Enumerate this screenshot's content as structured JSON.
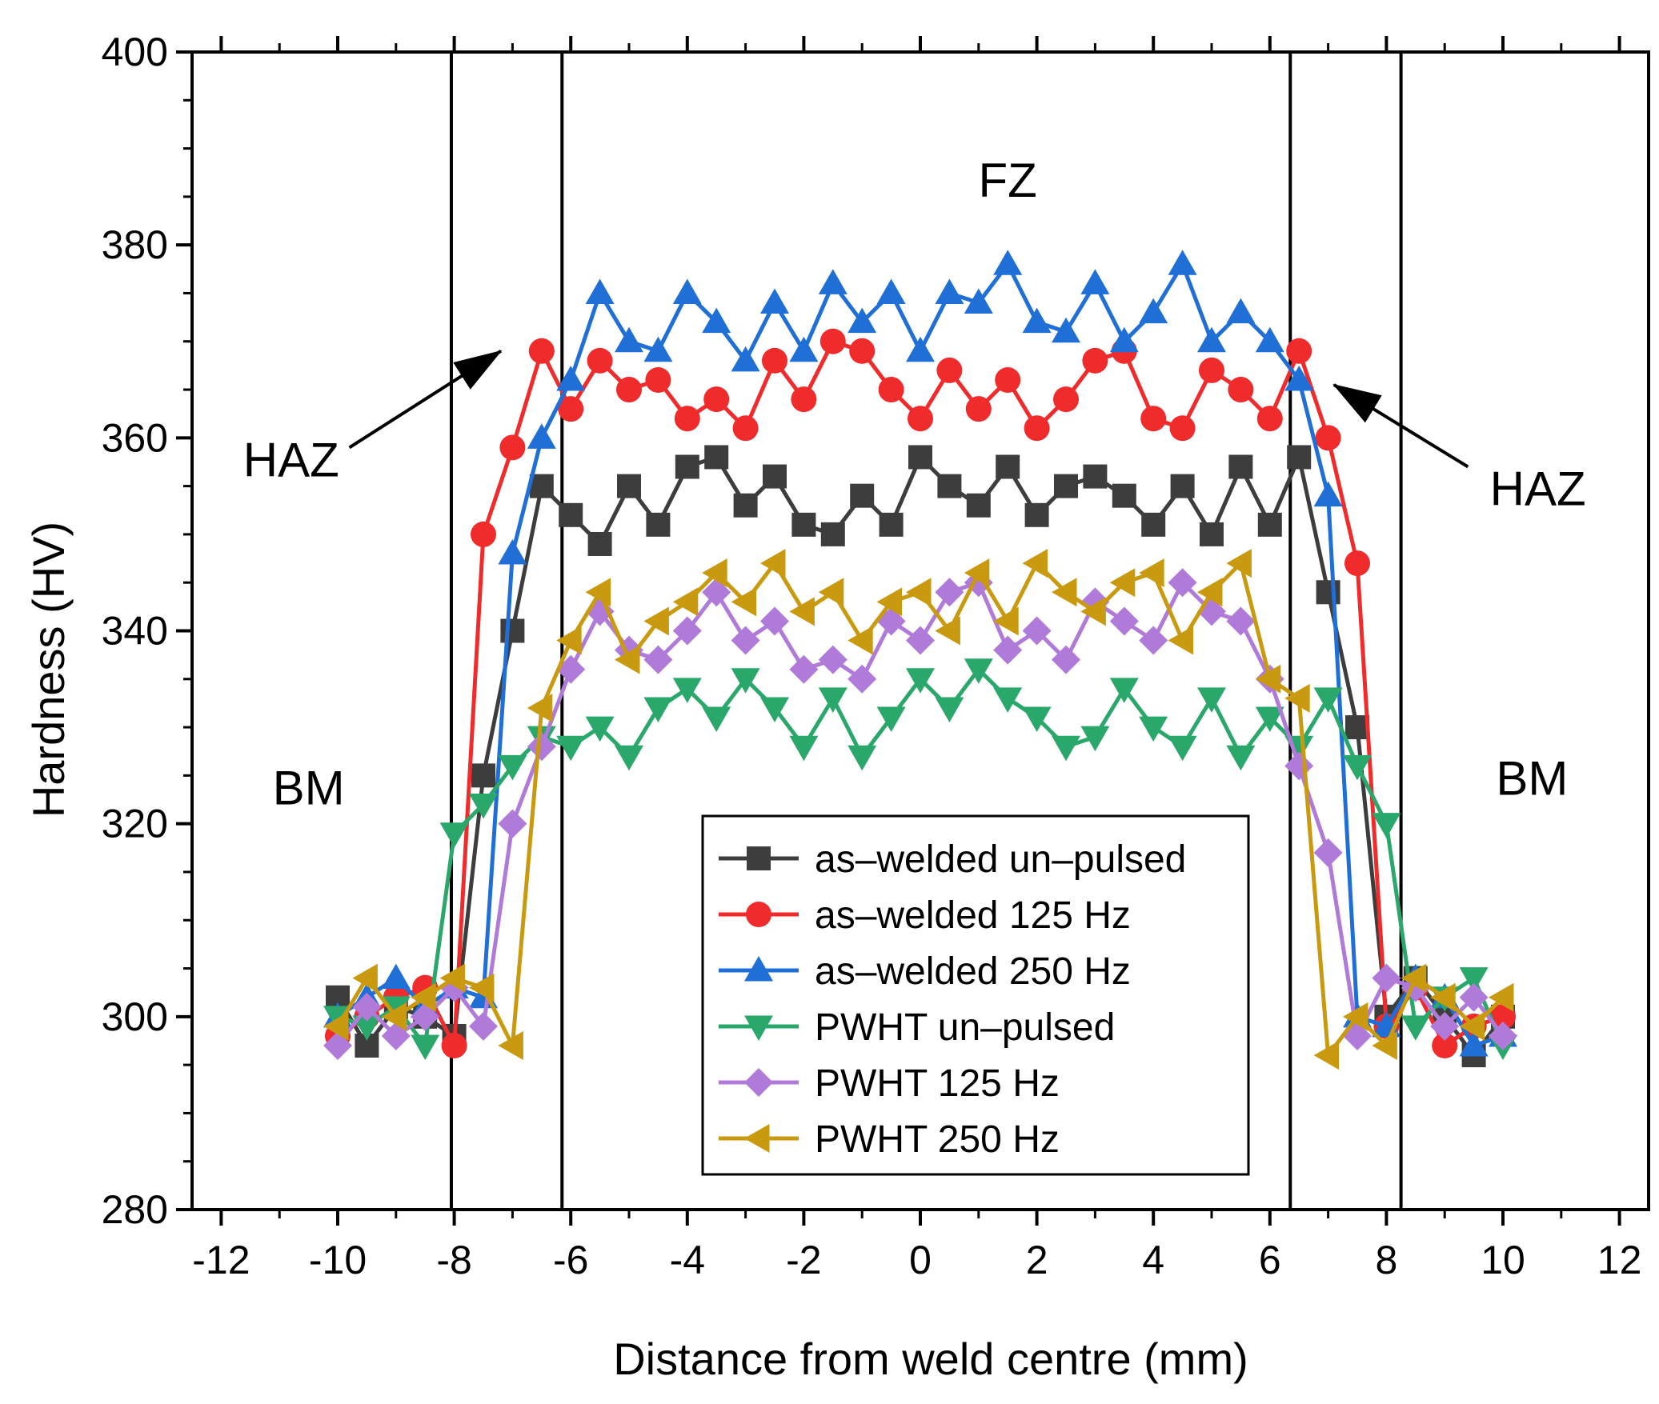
{
  "chart_data": {
    "type": "line",
    "xlabel": "Distance from weld centre (mm)",
    "ylabel": "Hardness (HV)",
    "xlim": [
      -12.5,
      12.5
    ],
    "ylim": [
      280,
      400
    ],
    "xticks": [
      -12,
      -10,
      -8,
      -6,
      -4,
      -2,
      0,
      2,
      4,
      6,
      8,
      10,
      12
    ],
    "yticks": [
      280,
      300,
      320,
      340,
      360,
      380,
      400
    ],
    "grid": false,
    "legend_position": "bottom-center",
    "region_boundaries": [
      -8.05,
      -6.15,
      6.35,
      8.25
    ],
    "region_labels": [
      {
        "text": "BM",
        "x": -10.5,
        "y": 322
      },
      {
        "text": "FZ",
        "x": 1.5,
        "y": 385
      },
      {
        "text": "BM",
        "x": 10.5,
        "y": 323
      },
      {
        "text": "HAZ",
        "x": -10.8,
        "y": 356
      },
      {
        "text": "HAZ",
        "x": 10.6,
        "y": 353
      }
    ],
    "annotations": [
      {
        "from": [
          -9.8,
          359
        ],
        "to": [
          -7.2,
          369
        ]
      },
      {
        "from": [
          9.4,
          357
        ],
        "to": [
          7.1,
          365.5
        ]
      }
    ],
    "x": [
      -10,
      -9.5,
      -9,
      -8.5,
      -8,
      -7.5,
      -7,
      -6.5,
      -6,
      -5.5,
      -5,
      -4.5,
      -4,
      -3.5,
      -3,
      -2.5,
      -2,
      -1.5,
      -1,
      -0.5,
      0,
      0.5,
      1,
      1.5,
      2,
      2.5,
      3,
      3.5,
      4,
      4.5,
      5,
      5.5,
      6,
      6.5,
      7,
      7.5,
      8,
      8.5,
      9,
      9.5,
      10
    ],
    "series": [
      {
        "name": "as–welded un–pulsed",
        "color": "#3d3d3d",
        "marker": "square",
        "values": [
          302,
          297,
          301,
          300,
          298,
          325,
          340,
          355,
          352,
          349,
          355,
          351,
          357,
          358,
          353,
          356,
          351,
          350,
          354,
          351,
          358,
          355,
          353,
          357,
          352,
          355,
          356,
          354,
          351,
          355,
          350,
          357,
          351,
          358,
          344,
          330,
          300,
          304,
          300,
          296,
          300
        ]
      },
      {
        "name": "as–welded 125 Hz",
        "color": "#ef2b2b",
        "marker": "circle",
        "values": [
          298,
          300,
          302,
          303,
          297,
          350,
          359,
          369,
          363,
          368,
          365,
          366,
          362,
          364,
          361,
          368,
          364,
          370,
          369,
          365,
          362,
          367,
          363,
          366,
          361,
          364,
          368,
          369,
          362,
          361,
          367,
          365,
          362,
          369,
          360,
          347,
          299,
          303,
          297,
          299,
          300
        ]
      },
      {
        "name": "as–welded 250 Hz",
        "color": "#1f6fd6",
        "marker": "triangle-up",
        "values": [
          300,
          302,
          304,
          301,
          303,
          302,
          348,
          360,
          366,
          375,
          370,
          369,
          375,
          372,
          368,
          374,
          369,
          376,
          372,
          375,
          369,
          375,
          374,
          378,
          372,
          371,
          376,
          370,
          373,
          378,
          370,
          373,
          370,
          366,
          354,
          300,
          299,
          304,
          302,
          297,
          298
        ]
      },
      {
        "name": "PWHT un–pulsed",
        "color": "#2aa76a",
        "marker": "triangle-down",
        "values": [
          300,
          299,
          301,
          297,
          319,
          322,
          326,
          329,
          328,
          330,
          327,
          332,
          334,
          331,
          335,
          332,
          328,
          333,
          327,
          331,
          335,
          332,
          336,
          333,
          331,
          328,
          329,
          334,
          330,
          328,
          333,
          327,
          331,
          328,
          333,
          326,
          320,
          299,
          302,
          304,
          297
        ]
      },
      {
        "name": "PWHT 125 Hz",
        "color": "#b07ad8",
        "marker": "diamond",
        "values": [
          297,
          301,
          298,
          300,
          303,
          299,
          320,
          328,
          336,
          342,
          338,
          337,
          340,
          344,
          339,
          341,
          336,
          337,
          335,
          341,
          339,
          344,
          345,
          338,
          340,
          337,
          343,
          341,
          339,
          345,
          342,
          341,
          335,
          326,
          317,
          298,
          304,
          303,
          299,
          302,
          298
        ]
      },
      {
        "name": "PWHT 250 Hz",
        "color": "#c99a10",
        "marker": "triangle-left",
        "values": [
          299,
          304,
          300,
          302,
          304,
          303,
          297,
          332,
          339,
          344,
          337,
          341,
          343,
          346,
          343,
          347,
          342,
          344,
          339,
          343,
          344,
          340,
          346,
          341,
          347,
          344,
          342,
          345,
          346,
          339,
          344,
          347,
          335,
          333,
          296,
          300,
          297,
          304,
          302,
          299,
          302
        ]
      }
    ]
  }
}
